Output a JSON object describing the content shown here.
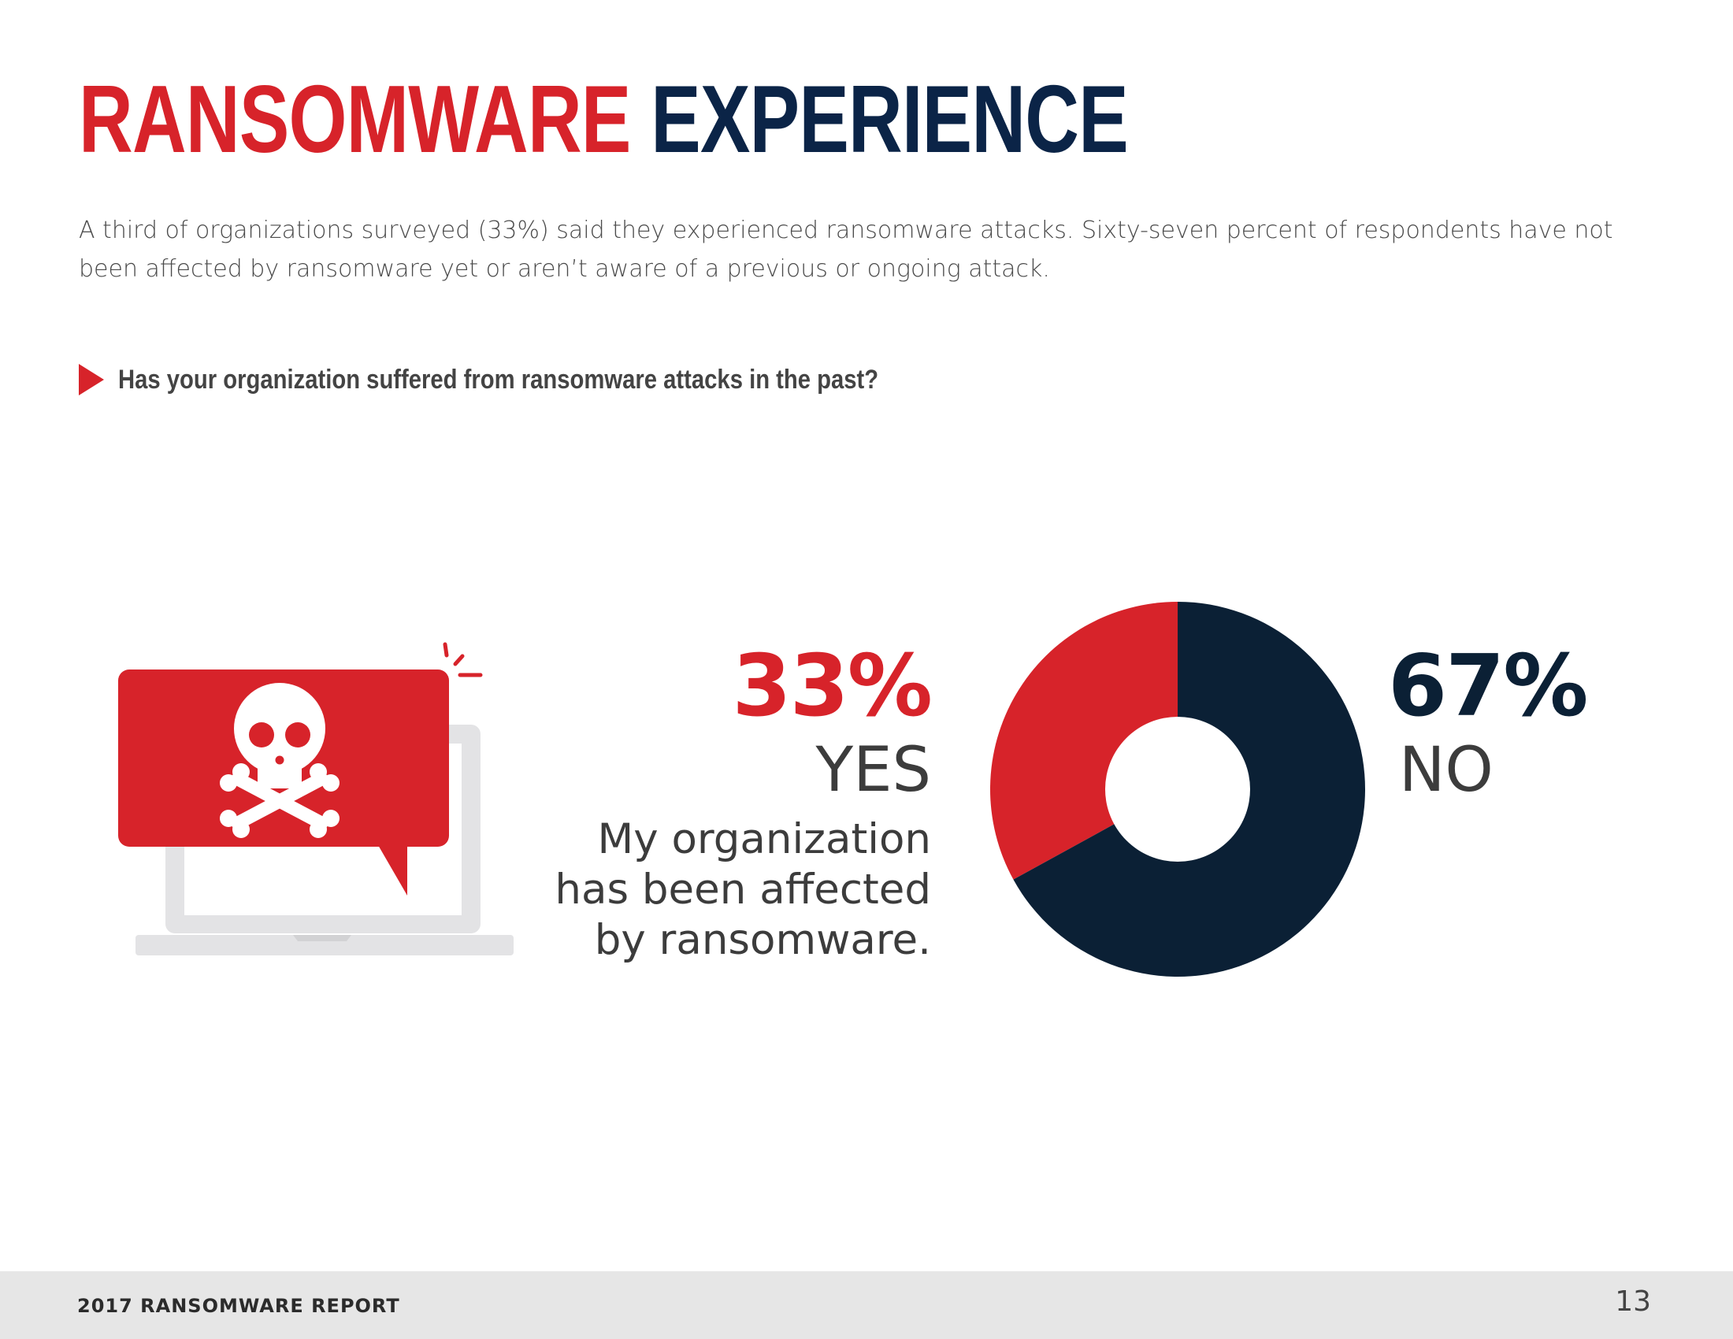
{
  "header": {
    "title_red": "RANSOMWARE",
    "title_navy": "EXPERIENCE"
  },
  "intro": "A third of organizations surveyed (33%) said they experienced ransomware attacks. Sixty-seven percent of respondents have not been affected by ransomware yet or aren’t aware of a previous or ongoing attack.",
  "question": "Has your organization suffered from ransomware attacks in the past?",
  "yes": {
    "percent": "33%",
    "label": "YES",
    "description_lines": [
      "My organization",
      "has been affected",
      "by ransomware."
    ]
  },
  "no": {
    "percent": "67%",
    "label": "NO"
  },
  "colors": {
    "red": "#d7232a",
    "navy": "#0b2035",
    "title_navy": "#0b2447",
    "laptop_gray": "#e3e3e5"
  },
  "icons": [
    "skull-crossbones-icon",
    "laptop-icon",
    "speech-bubble-icon",
    "alert-spark-icon",
    "triangle-bullet-icon"
  ],
  "chart_data": {
    "type": "pie",
    "categories": [
      "YES",
      "NO"
    ],
    "values": [
      33,
      67
    ],
    "colors": [
      "#d7232a",
      "#0b2035"
    ],
    "donut": true,
    "title": "",
    "xlabel": "",
    "ylabel": ""
  },
  "footer": {
    "report": "2017 RANSOMWARE REPORT",
    "page": "13"
  }
}
